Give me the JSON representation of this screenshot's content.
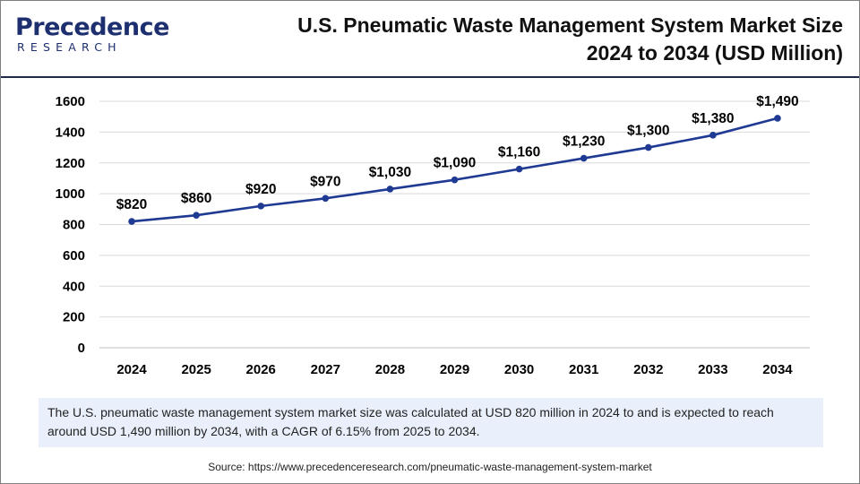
{
  "logo": {
    "word": "Precedence",
    "sub": "RESEARCH"
  },
  "header": {
    "title_line1": "U.S. Pneumatic Waste Management System Market Size",
    "title_line2": "2024 to 2034 (USD Million)"
  },
  "chart_data": {
    "type": "line",
    "title": "U.S. Pneumatic Waste Management System Market Size 2024 to 2034 (USD Million)",
    "xlabel": "",
    "ylabel": "",
    "categories": [
      "2024",
      "2025",
      "2026",
      "2027",
      "2028",
      "2029",
      "2030",
      "2031",
      "2032",
      "2033",
      "2034"
    ],
    "values": [
      820,
      860,
      920,
      970,
      1030,
      1090,
      1160,
      1230,
      1300,
      1380,
      1490
    ],
    "value_labels": [
      "$820",
      "$860",
      "$920",
      "$970",
      "$1,030",
      "$1,090",
      "$1,160",
      "$1,230",
      "$1,300",
      "$1,380",
      "$1,490"
    ],
    "ylim": [
      0,
      1600
    ],
    "yticks": [
      0,
      200,
      400,
      600,
      800,
      1000,
      1200,
      1400,
      1600
    ],
    "grid": true,
    "line_color": "#1f3a93"
  },
  "description": "The U.S. pneumatic waste management system market size was calculated at USD 820 million in 2024 to and is expected to reach around USD 1,490 million by 2034, with a CAGR of 6.15% from 2025 to 2034.",
  "source": "Source: https://www.precedenceresearch.com/pneumatic-waste-management-system-market"
}
